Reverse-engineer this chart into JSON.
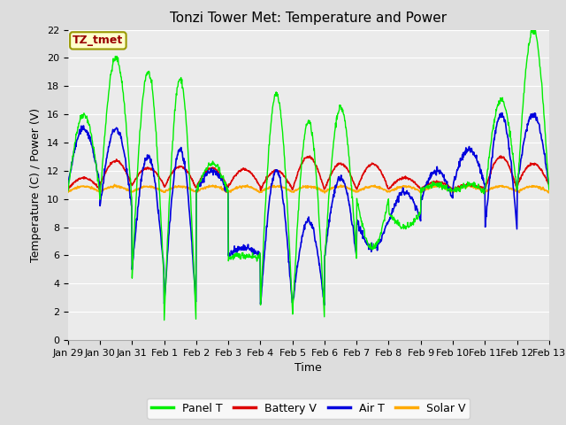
{
  "title": "Tonzi Tower Met: Temperature and Power",
  "xlabel": "Time",
  "ylabel": "Temperature (C) / Power (V)",
  "annotation": "TZ_tmet",
  "ylim": [
    0,
    22
  ],
  "yticks": [
    0,
    2,
    4,
    6,
    8,
    10,
    12,
    14,
    16,
    18,
    20,
    22
  ],
  "xtick_labels": [
    "Jan 29",
    "Jan 30",
    "Jan 31",
    "Feb 1",
    "Feb 2",
    "Feb 3",
    "Feb 4",
    "Feb 5",
    "Feb 6",
    "Feb 7",
    "Feb 8",
    "Feb 9",
    "Feb 10",
    "Feb 11",
    "Feb 12",
    "Feb 13"
  ],
  "colors": {
    "panel_t": "#00EE00",
    "battery_v": "#DD0000",
    "air_t": "#0000DD",
    "solar_v": "#FFAA00"
  },
  "legend_labels": [
    "Panel T",
    "Battery V",
    "Air T",
    "Solar V"
  ],
  "background_color": "#DDDDDD",
  "plot_bg_color": "#EBEBEB",
  "grid_color": "#FFFFFF",
  "title_fontsize": 11,
  "axis_fontsize": 9,
  "tick_fontsize": 8,
  "legend_fontsize": 9
}
